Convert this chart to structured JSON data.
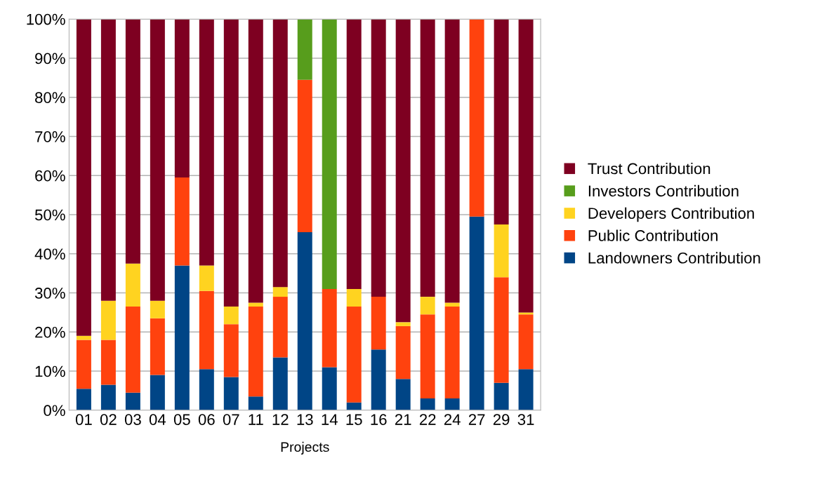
{
  "chart_data": {
    "type": "bar",
    "stacked": true,
    "xlabel": "Projects",
    "categories": [
      "01",
      "02",
      "03",
      "04",
      "05",
      "06",
      "07",
      "11",
      "12",
      "13",
      "14",
      "15",
      "16",
      "21",
      "22",
      "24",
      "27",
      "29",
      "31"
    ],
    "series": [
      {
        "name": "Landowners Contribution",
        "color": "#004586",
        "values": [
          5.5,
          6.5,
          4.5,
          9,
          37,
          10.5,
          8.5,
          3.5,
          13.5,
          45.5,
          11,
          2,
          15.5,
          8,
          3,
          3,
          49.5,
          7,
          10.5
        ]
      },
      {
        "name": "Public Contribution",
        "color": "#ff420e",
        "values": [
          12.5,
          11.5,
          22,
          14.5,
          22.5,
          20,
          13.5,
          23,
          15.5,
          39,
          20,
          24.5,
          13.5,
          13.5,
          21.5,
          23.5,
          50.5,
          27,
          14
        ]
      },
      {
        "name": "Developers Contribution",
        "color": "#ffd320",
        "values": [
          1,
          10,
          11,
          4.5,
          0,
          6.5,
          4.5,
          1,
          2.5,
          0,
          0,
          4.5,
          0,
          1,
          4.5,
          1,
          0,
          13.5,
          0.5
        ]
      },
      {
        "name": "Investors Contribution",
        "color": "#579d1c",
        "values": [
          0,
          0,
          0,
          0,
          0,
          0,
          0,
          0,
          0,
          15.5,
          69,
          0,
          0,
          0,
          0,
          0,
          0,
          0,
          0
        ]
      },
      {
        "name": "Trust Contribution",
        "color": "#7e0021",
        "values": [
          81,
          72,
          62.5,
          72,
          40.5,
          63,
          73.5,
          72.5,
          68.5,
          0,
          0,
          69,
          71,
          77.5,
          71,
          72.5,
          0,
          52.5,
          75
        ]
      }
    ],
    "ylim": [
      0,
      100
    ],
    "yticks": [
      {
        "value": 0,
        "label": "0%"
      },
      {
        "value": 10,
        "label": "10%"
      },
      {
        "value": 20,
        "label": "20%"
      },
      {
        "value": 30,
        "label": "30%"
      },
      {
        "value": 40,
        "label": "40%"
      },
      {
        "value": 50,
        "label": "50%"
      },
      {
        "value": 60,
        "label": "60%"
      },
      {
        "value": 70,
        "label": "70%"
      },
      {
        "value": 80,
        "label": "80%"
      },
      {
        "value": 90,
        "label": "90%"
      },
      {
        "value": 100,
        "label": "100%"
      }
    ],
    "grid": "y",
    "legend": "right"
  }
}
